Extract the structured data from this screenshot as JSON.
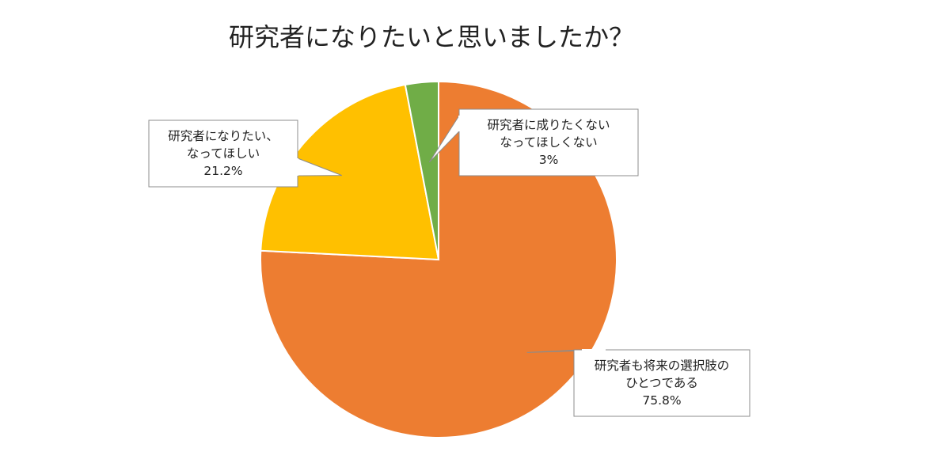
{
  "chart_data": {
    "type": "pie",
    "title": "研究者になりたいと思いましたか？",
    "slices": [
      {
        "lines": [
          "研究者も将来の選択肢の",
          "ひとつである"
        ],
        "value": 75.8,
        "value_label": "75.8%",
        "color": "#ED7D31"
      },
      {
        "lines": [
          "研究者になりたい、",
          "なってほしい"
        ],
        "value": 21.2,
        "value_label": "21.2%",
        "color": "#FFC000"
      },
      {
        "lines": [
          "研究者に成りたくない",
          "なってほしくない"
        ],
        "value": 3,
        "value_label": "3%",
        "color": "#70AD47"
      }
    ],
    "start": "12 o'clock",
    "direction": "clockwise",
    "labels": "callouts",
    "legend": "none"
  }
}
